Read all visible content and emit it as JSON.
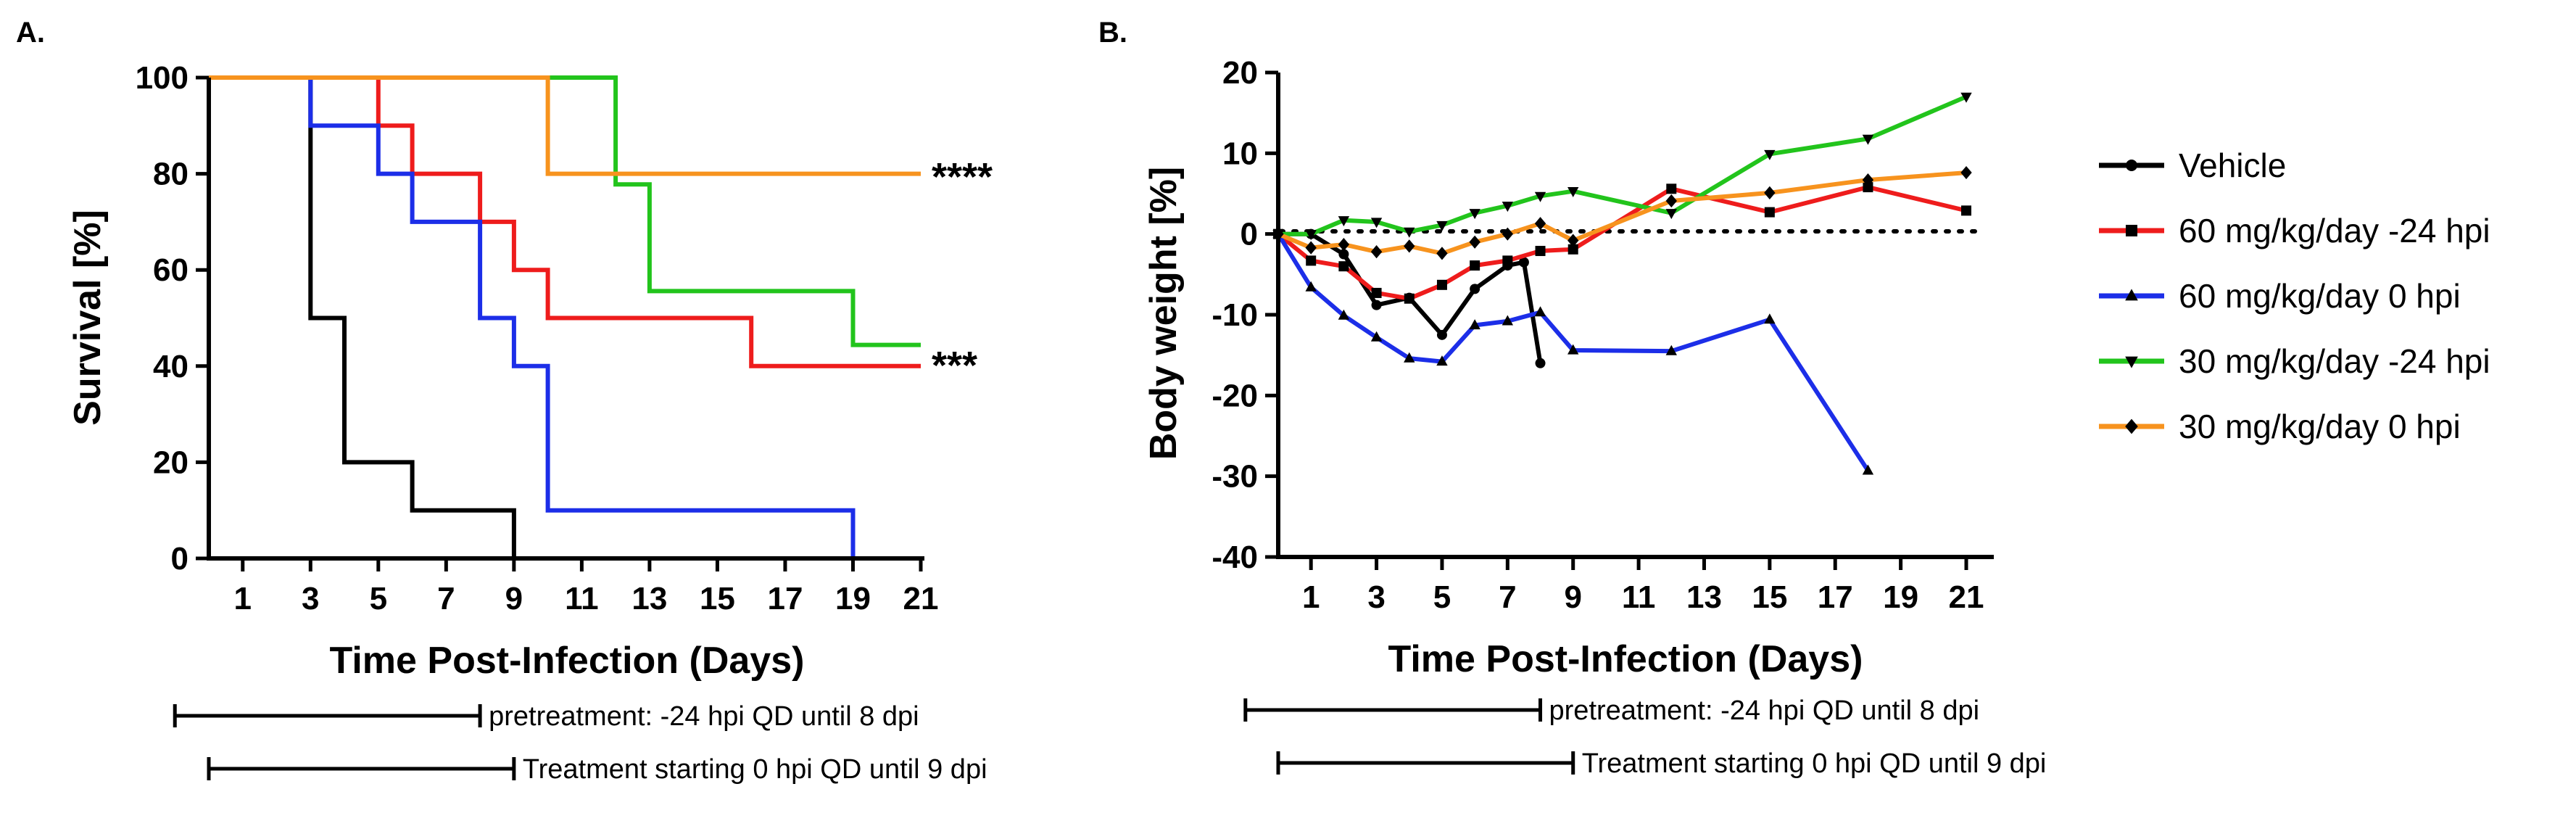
{
  "colors": {
    "vehicle": "#000000",
    "mg60_pre": "#ee1c1c",
    "mg60_0": "#1c2ee8",
    "mg30_pre": "#22c41c",
    "mg30_0": "#f7931e"
  },
  "legend": [
    {
      "key": "vehicle",
      "label": "Vehicle",
      "marker": "circle"
    },
    {
      "key": "mg60_pre",
      "label": "60 mg/kg/day -24 hpi",
      "marker": "square"
    },
    {
      "key": "mg60_0",
      "label": "60 mg/kg/day 0 hpi",
      "marker": "triangle-up"
    },
    {
      "key": "mg30_pre",
      "label": "30 mg/kg/day -24 hpi",
      "marker": "triangle-down"
    },
    {
      "key": "mg30_0",
      "label": "30 mg/kg/day 0 hpi",
      "marker": "diamond"
    }
  ],
  "chart_data": [
    {
      "panel": "A.",
      "type": "line",
      "style": "step",
      "ylabel": "Survival [%]",
      "xlabel": "Time Post-Infection (Days)",
      "xlim": [
        0,
        21
      ],
      "ylim": [
        0,
        100
      ],
      "xticks": [
        1,
        3,
        5,
        7,
        9,
        11,
        13,
        15,
        17,
        19,
        21
      ],
      "yticks": [
        0,
        20,
        40,
        60,
        80,
        100
      ],
      "series": [
        {
          "key": "vehicle",
          "name": "Vehicle",
          "points": [
            [
              0,
              100
            ],
            [
              3,
              100
            ],
            [
              3,
              50
            ],
            [
              4,
              50
            ],
            [
              4,
              20
            ],
            [
              6,
              20
            ],
            [
              6,
              10
            ],
            [
              9,
              10
            ],
            [
              9,
              0
            ]
          ]
        },
        {
          "key": "mg60_pre",
          "name": "60 mg/kg/day -24 hpi",
          "points": [
            [
              0,
              100
            ],
            [
              5,
              100
            ],
            [
              5,
              90
            ],
            [
              6,
              90
            ],
            [
              6,
              80
            ],
            [
              8,
              80
            ],
            [
              8,
              70
            ],
            [
              9,
              70
            ],
            [
              9,
              60
            ],
            [
              10,
              60
            ],
            [
              10,
              50
            ],
            [
              16,
              50
            ],
            [
              16,
              40
            ],
            [
              21,
              40
            ]
          ]
        },
        {
          "key": "mg60_0",
          "name": "60 mg/kg/day 0 hpi",
          "points": [
            [
              0,
              100
            ],
            [
              3,
              100
            ],
            [
              3,
              90
            ],
            [
              5,
              90
            ],
            [
              5,
              80
            ],
            [
              6,
              80
            ],
            [
              6,
              70
            ],
            [
              8,
              70
            ],
            [
              8,
              50
            ],
            [
              9,
              50
            ],
            [
              9,
              40
            ],
            [
              10,
              40
            ],
            [
              10,
              10
            ],
            [
              19,
              10
            ],
            [
              19,
              0
            ]
          ]
        },
        {
          "key": "mg30_pre",
          "name": "30 mg/kg/day -24 hpi",
          "points": [
            [
              0,
              100
            ],
            [
              12,
              100
            ],
            [
              12,
              77.8
            ],
            [
              13,
              77.8
            ],
            [
              13,
              55.6
            ],
            [
              19,
              55.6
            ],
            [
              19,
              44.4
            ],
            [
              21,
              44.4
            ]
          ]
        },
        {
          "key": "mg30_0",
          "name": "30 mg/kg/day 0 hpi",
          "points": [
            [
              0,
              100
            ],
            [
              10,
              100
            ],
            [
              10,
              80
            ],
            [
              21,
              80
            ]
          ]
        }
      ],
      "annotations": [
        {
          "text": "****",
          "x": 21,
          "y": 80
        },
        {
          "text": "***",
          "x": 21,
          "y": 40
        }
      ],
      "brackets": [
        {
          "label": "pretreatment: -24 hpi QD until 8 dpi",
          "start": -1,
          "end": 8
        },
        {
          "label": "Treatment starting 0 hpi QD until 9 dpi",
          "start": 0,
          "end": 9
        }
      ]
    },
    {
      "panel": "B.",
      "type": "line",
      "ylabel": "Body weight [%]",
      "xlabel": "Time Post-Infection (Days)",
      "xlim": [
        0,
        21
      ],
      "ylim": [
        -40,
        20
      ],
      "xticks": [
        1,
        3,
        5,
        7,
        9,
        11,
        13,
        15,
        17,
        19,
        21
      ],
      "yticks": [
        -40,
        -30,
        -20,
        -10,
        0,
        10,
        20
      ],
      "zero_line": "dotted",
      "series": [
        {
          "key": "vehicle",
          "name": "Vehicle",
          "marker": "circle",
          "points": [
            [
              0,
              0
            ],
            [
              1,
              0
            ],
            [
              2,
              -2.5
            ],
            [
              3,
              -8.8
            ],
            [
              4,
              -7.9
            ],
            [
              5,
              -12.5
            ],
            [
              6,
              -6.8
            ],
            [
              7,
              -3.9
            ],
            [
              7.5,
              -3.5
            ],
            [
              8,
              -16
            ]
          ]
        },
        {
          "key": "mg60_pre",
          "name": "60 mg/kg/day -24 hpi",
          "marker": "square",
          "points": [
            [
              0,
              0
            ],
            [
              1,
              -3.3
            ],
            [
              2,
              -4
            ],
            [
              3,
              -7.3
            ],
            [
              4,
              -8
            ],
            [
              5,
              -6.3
            ],
            [
              6,
              -3.9
            ],
            [
              7,
              -3.3
            ],
            [
              8,
              -2.1
            ],
            [
              9,
              -1.9
            ],
            [
              12,
              5.6
            ],
            [
              15,
              2.7
            ],
            [
              18,
              5.8
            ],
            [
              21,
              2.9
            ]
          ]
        },
        {
          "key": "mg60_0",
          "name": "60 mg/kg/day 0 hpi",
          "marker": "triangle-up",
          "points": [
            [
              0,
              0
            ],
            [
              1,
              -6.6
            ],
            [
              2,
              -10.1
            ],
            [
              3,
              -12.8
            ],
            [
              4,
              -15.4
            ],
            [
              5,
              -15.8
            ],
            [
              6,
              -11.3
            ],
            [
              7,
              -10.8
            ],
            [
              8,
              -9.7
            ],
            [
              9,
              -14.4
            ],
            [
              12,
              -14.5
            ],
            [
              15,
              -10.6
            ],
            [
              18,
              -29.3
            ]
          ]
        },
        {
          "key": "mg30_pre",
          "name": "30 mg/kg/day -24 hpi",
          "marker": "triangle-down",
          "points": [
            [
              0,
              0
            ],
            [
              1,
              0
            ],
            [
              2,
              1.7
            ],
            [
              3,
              1.5
            ],
            [
              4,
              0.3
            ],
            [
              5,
              1.1
            ],
            [
              6,
              2.6
            ],
            [
              7,
              3.5
            ],
            [
              8,
              4.7
            ],
            [
              9,
              5.3
            ],
            [
              12,
              2.6
            ],
            [
              15,
              9.9
            ],
            [
              18,
              11.8
            ],
            [
              21,
              17
            ]
          ]
        },
        {
          "key": "mg30_0",
          "name": "30 mg/kg/day 0 hpi",
          "marker": "diamond",
          "points": [
            [
              0,
              0
            ],
            [
              1,
              -1.7
            ],
            [
              2,
              -1.3
            ],
            [
              3,
              -2.2
            ],
            [
              4,
              -1.5
            ],
            [
              5,
              -2.4
            ],
            [
              6,
              -1
            ],
            [
              7,
              0
            ],
            [
              8,
              1.3
            ],
            [
              9,
              -0.8
            ],
            [
              12,
              4.1
            ],
            [
              15,
              5.1
            ],
            [
              18,
              6.7
            ],
            [
              21,
              7.6
            ]
          ]
        }
      ],
      "brackets": [
        {
          "label": "pretreatment: -24 hpi QD until 8 dpi",
          "start": -1,
          "end": 8
        },
        {
          "label": "Treatment starting 0 hpi QD until 9 dpi",
          "start": 0,
          "end": 9
        }
      ]
    }
  ]
}
